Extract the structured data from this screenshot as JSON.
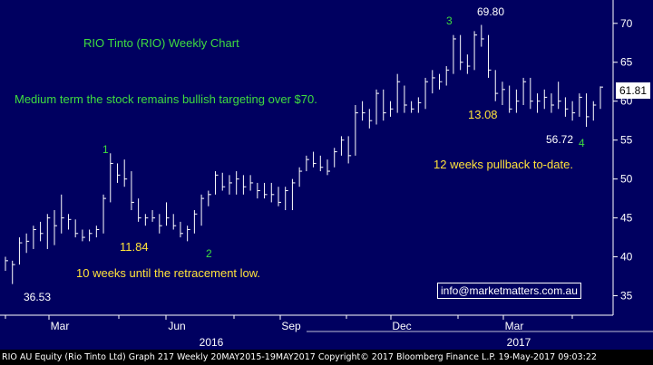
{
  "chart_data": {
    "type": "ohlc",
    "title": "RIO Tinto (RIO) Weekly Chart",
    "ylim": [
      32.5,
      73
    ],
    "y_ticks": [
      35,
      40,
      45,
      50,
      55,
      60,
      65,
      70
    ],
    "x_tick_labels": [
      "Mar",
      "Jun",
      "Sep",
      "Dec",
      "Mar"
    ],
    "year_labels": [
      "2016",
      "2017"
    ],
    "last_price": "61.81",
    "grid": false,
    "bars": [
      {
        "h": 40.0,
        "l": 38.2,
        "c": 39.5
      },
      {
        "h": 39.5,
        "l": 36.5,
        "c": 39.0
      },
      {
        "h": 42.5,
        "l": 39.0,
        "c": 41.8
      },
      {
        "h": 43.0,
        "l": 40.5,
        "c": 42.0
      },
      {
        "h": 44.0,
        "l": 41.0,
        "c": 43.5
      },
      {
        "h": 44.5,
        "l": 42.0,
        "c": 43.0
      },
      {
        "h": 45.5,
        "l": 41.0,
        "c": 45.0
      },
      {
        "h": 46.0,
        "l": 41.5,
        "c": 44.0
      },
      {
        "h": 48.0,
        "l": 43.0,
        "c": 45.0
      },
      {
        "h": 45.5,
        "l": 43.5,
        "c": 44.8
      },
      {
        "h": 44.8,
        "l": 42.5,
        "c": 43.0
      },
      {
        "h": 43.5,
        "l": 42.0,
        "c": 42.5
      },
      {
        "h": 43.5,
        "l": 42.0,
        "c": 43.0
      },
      {
        "h": 44.0,
        "l": 42.5,
        "c": 43.5
      },
      {
        "h": 48.0,
        "l": 43.0,
        "c": 47.5
      },
      {
        "h": 53.3,
        "l": 47.0,
        "c": 52.0
      },
      {
        "h": 52.0,
        "l": 49.5,
        "c": 50.5
      },
      {
        "h": 52.5,
        "l": 49.0,
        "c": 50.0
      },
      {
        "h": 51.0,
        "l": 46.0,
        "c": 47.0
      },
      {
        "h": 47.5,
        "l": 44.5,
        "c": 45.0
      },
      {
        "h": 45.5,
        "l": 44.0,
        "c": 45.0
      },
      {
        "h": 46.0,
        "l": 44.5,
        "c": 45.0
      },
      {
        "h": 45.5,
        "l": 43.0,
        "c": 44.0
      },
      {
        "h": 47.0,
        "l": 44.0,
        "c": 45.0
      },
      {
        "h": 45.5,
        "l": 43.5,
        "c": 44.0
      },
      {
        "h": 44.5,
        "l": 42.5,
        "c": 43.0
      },
      {
        "h": 44.0,
        "l": 42.0,
        "c": 43.5
      },
      {
        "h": 46.0,
        "l": 43.0,
        "c": 45.5
      },
      {
        "h": 48.0,
        "l": 44.0,
        "c": 47.5
      },
      {
        "h": 48.5,
        "l": 46.5,
        "c": 48.0
      },
      {
        "h": 51.0,
        "l": 48.0,
        "c": 50.5
      },
      {
        "h": 50.8,
        "l": 48.5,
        "c": 49.0
      },
      {
        "h": 50.5,
        "l": 48.0,
        "c": 49.5
      },
      {
        "h": 51.0,
        "l": 48.0,
        "c": 50.0
      },
      {
        "h": 50.5,
        "l": 48.0,
        "c": 49.0
      },
      {
        "h": 50.5,
        "l": 48.5,
        "c": 49.5
      },
      {
        "h": 49.5,
        "l": 47.5,
        "c": 48.5
      },
      {
        "h": 49.5,
        "l": 47.5,
        "c": 48.0
      },
      {
        "h": 49.5,
        "l": 47.0,
        "c": 48.0
      },
      {
        "h": 49.0,
        "l": 46.5,
        "c": 47.0
      },
      {
        "h": 49.0,
        "l": 46.0,
        "c": 48.5
      },
      {
        "h": 50.0,
        "l": 46.0,
        "c": 49.5
      },
      {
        "h": 51.5,
        "l": 49.0,
        "c": 51.0
      },
      {
        "h": 53.0,
        "l": 51.0,
        "c": 52.5
      },
      {
        "h": 53.5,
        "l": 51.5,
        "c": 52.0
      },
      {
        "h": 53.0,
        "l": 51.0,
        "c": 51.5
      },
      {
        "h": 52.5,
        "l": 50.5,
        "c": 51.0
      },
      {
        "h": 54.0,
        "l": 51.5,
        "c": 53.5
      },
      {
        "h": 55.5,
        "l": 53.0,
        "c": 55.0
      },
      {
        "h": 55.5,
        "l": 52.0,
        "c": 53.0
      },
      {
        "h": 59.5,
        "l": 53.0,
        "c": 58.5
      },
      {
        "h": 60.0,
        "l": 57.5,
        "c": 58.5
      },
      {
        "h": 59.0,
        "l": 56.5,
        "c": 57.5
      },
      {
        "h": 61.5,
        "l": 57.0,
        "c": 61.0
      },
      {
        "h": 61.5,
        "l": 57.5,
        "c": 58.5
      },
      {
        "h": 60.0,
        "l": 58.0,
        "c": 59.0
      },
      {
        "h": 63.5,
        "l": 58.5,
        "c": 62.5
      },
      {
        "h": 62.0,
        "l": 58.5,
        "c": 59.5
      },
      {
        "h": 60.0,
        "l": 58.5,
        "c": 59.0
      },
      {
        "h": 60.5,
        "l": 58.5,
        "c": 59.8
      },
      {
        "h": 63.0,
        "l": 59.0,
        "c": 62.5
      },
      {
        "h": 64.0,
        "l": 61.0,
        "c": 63.0
      },
      {
        "h": 63.5,
        "l": 61.5,
        "c": 62.5
      },
      {
        "h": 64.5,
        "l": 62.0,
        "c": 64.0
      },
      {
        "h": 68.5,
        "l": 63.5,
        "c": 68.0
      },
      {
        "h": 68.5,
        "l": 64.0,
        "c": 65.0
      },
      {
        "h": 66.0,
        "l": 63.5,
        "c": 64.5
      },
      {
        "h": 69.0,
        "l": 64.0,
        "c": 68.5
      },
      {
        "h": 69.8,
        "l": 67.0,
        "c": 68.0
      },
      {
        "h": 68.5,
        "l": 63.0,
        "c": 64.0
      },
      {
        "h": 64.0,
        "l": 60.0,
        "c": 61.0
      },
      {
        "h": 62.5,
        "l": 59.5,
        "c": 61.5
      },
      {
        "h": 62.0,
        "l": 58.5,
        "c": 59.0
      },
      {
        "h": 61.5,
        "l": 58.5,
        "c": 60.0
      },
      {
        "h": 63.0,
        "l": 59.5,
        "c": 62.5
      },
      {
        "h": 63.0,
        "l": 59.0,
        "c": 60.0
      },
      {
        "h": 61.0,
        "l": 58.5,
        "c": 60.0
      },
      {
        "h": 61.5,
        "l": 59.0,
        "c": 60.5
      },
      {
        "h": 61.0,
        "l": 58.5,
        "c": 59.5
      },
      {
        "h": 62.5,
        "l": 59.0,
        "c": 60.0
      },
      {
        "h": 60.5,
        "l": 58.0,
        "c": 59.0
      },
      {
        "h": 60.0,
        "l": 57.5,
        "c": 58.5
      },
      {
        "h": 61.0,
        "l": 58.0,
        "c": 60.5
      },
      {
        "h": 61.0,
        "l": 56.7,
        "c": 58.0
      },
      {
        "h": 60.0,
        "l": 57.5,
        "c": 59.5
      },
      {
        "h": 61.9,
        "l": 59.0,
        "c": 61.81
      }
    ],
    "month_ticks": [
      {
        "bar": 4,
        "label": 0
      },
      {
        "bar": 17,
        "label": null
      },
      {
        "bar": 30,
        "label": 1
      },
      {
        "bar": 43,
        "label": null
      },
      {
        "bar": 56,
        "label": 2
      },
      {
        "bar": 69,
        "label": null
      },
      {
        "bar": 82,
        "label": 3
      },
      {
        "bar": 95,
        "label": null
      },
      {
        "bar": 108,
        "label": 4
      }
    ]
  },
  "annotations": {
    "chart_title": "RIO Tinto (RIO) Weekly Chart",
    "commentary": "Medium term the stock remains bullish targeting over $70.",
    "wave_1": "1",
    "wave_2": "2",
    "wave_3": "3",
    "wave_4": "4",
    "low_price": "36.53",
    "retrace_low": "11.84",
    "retrace_note": "10 weeks until the retracement low.",
    "high_price": "69.80",
    "pullback_val": "13.08",
    "recent_low": "56.72",
    "pullback_note": "12 weeks pullback to-date.",
    "contact_email": "info@marketmatters.com.au"
  },
  "footer": {
    "text": "RIO AU Equity (Rio Tinto Ltd) Graph 217  Weekly 20MAY2015-19MAY2017  Copyright© 2017 Bloomberg Finance L.P.  19-May-2017 09:03:22"
  },
  "colors": {
    "background": "#000060",
    "bars": "#ffffff",
    "wave_labels": "#3fdc3f",
    "values": "#ffe23a"
  }
}
